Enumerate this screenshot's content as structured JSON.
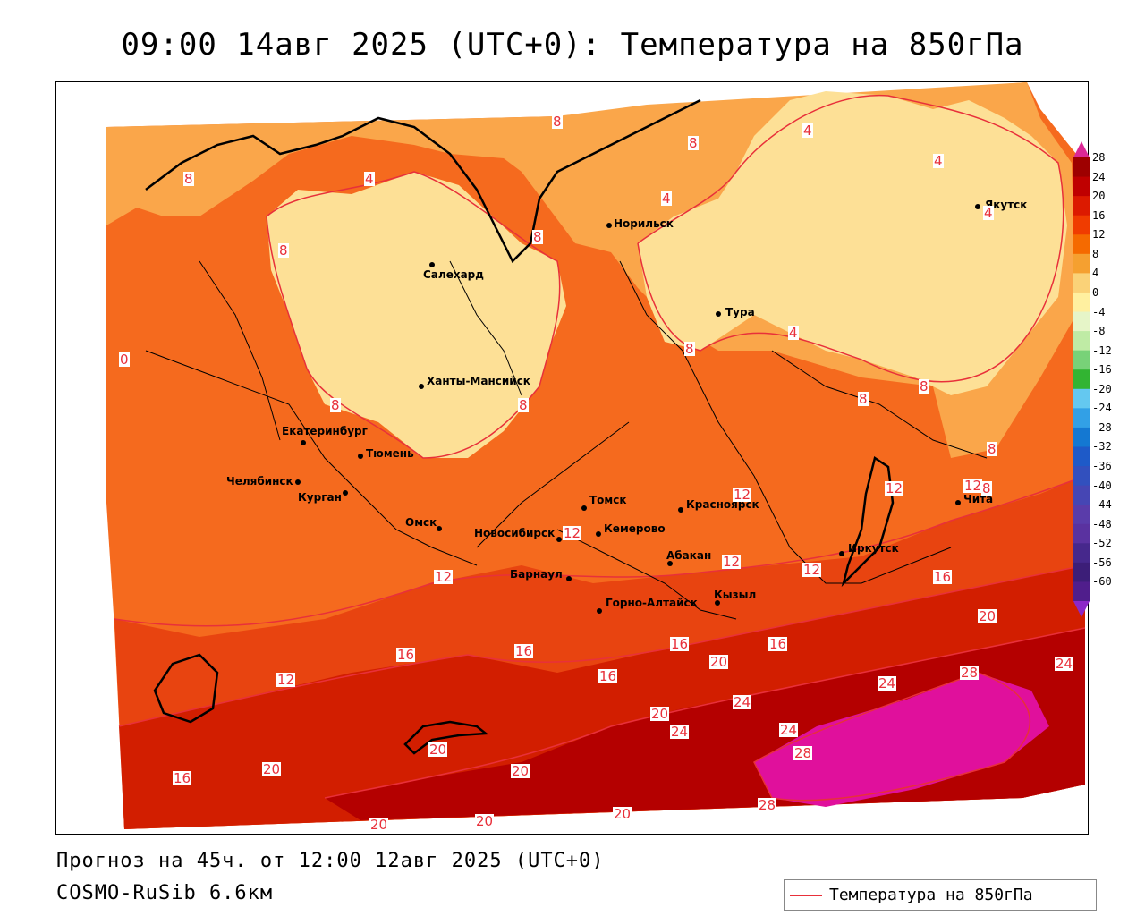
{
  "header": {
    "title": "09:00 14авг 2025 (UTC+0): Температура на 850гПа"
  },
  "footer": {
    "forecast": "Прогноз на 45ч. от 12:00 12авг 2025 (UTC+0)",
    "model": "COSMO-RuSib 6.6км"
  },
  "legend": {
    "label": "Температура на 850гПа",
    "line_color": "#e8303a"
  },
  "colorbar": {
    "ticks": [
      "28",
      "24",
      "20",
      "16",
      "12",
      "8",
      "4",
      "0",
      "-4",
      "-8",
      "-12",
      "-16",
      "-20",
      "-24",
      "-28",
      "-32",
      "-36",
      "-40",
      "-44",
      "-48",
      "-52",
      "-56",
      "-60"
    ],
    "colors": [
      "#9e0000",
      "#bf0000",
      "#dc1a00",
      "#f03c00",
      "#f56a00",
      "#f5a030",
      "#fad278",
      "#fff0a0",
      "#e6f5c8",
      "#bfeba5",
      "#78d278",
      "#32b432",
      "#64c8f0",
      "#32a0e6",
      "#1478d2",
      "#1e5ac8",
      "#3250be",
      "#4646b4",
      "#5a3caa",
      "#5a32a0",
      "#46288c",
      "#3c1e78",
      "#501e8c"
    ],
    "top_arrow_color": "#dc2896",
    "bottom_arrow_color": "#8c28c8"
  },
  "cities": [
    {
      "name": "Норильск"
    },
    {
      "name": "Салехард"
    },
    {
      "name": "Тура"
    },
    {
      "name": "Якутск"
    },
    {
      "name": "Ханты-Мансийск"
    },
    {
      "name": "Екатеринбург"
    },
    {
      "name": "Тюмень"
    },
    {
      "name": "Челябинск"
    },
    {
      "name": "Курган"
    },
    {
      "name": "Омск"
    },
    {
      "name": "Новосибирск"
    },
    {
      "name": "Томск"
    },
    {
      "name": "Кемерово"
    },
    {
      "name": "Красноярск"
    },
    {
      "name": "Абакан"
    },
    {
      "name": "Барнаул"
    },
    {
      "name": "Горно-Алтайск"
    },
    {
      "name": "Кызыл"
    },
    {
      "name": "Иркутск"
    },
    {
      "name": "Чита"
    }
  ],
  "isotherm_labels": [
    "8",
    "4",
    "8",
    "8",
    "8",
    "4",
    "4",
    "0",
    "8",
    "4",
    "8",
    "4",
    "8",
    "4",
    "8",
    "8",
    "8",
    "8",
    "8",
    "12",
    "12",
    "12",
    "12",
    "12",
    "12",
    "12",
    "16",
    "16",
    "16",
    "16",
    "20",
    "16",
    "12",
    "16",
    "20",
    "20",
    "24",
    "24",
    "28",
    "20",
    "24",
    "24",
    "28",
    "24",
    "20",
    "20",
    "20",
    "20",
    "16",
    "20",
    "28"
  ],
  "fill_colors": {
    "t28plus": "#e0109c",
    "t24": "#b40000",
    "t20": "#d21e00",
    "t16": "#e84410",
    "t12": "#f56a1e",
    "t8": "#faa64a",
    "t4": "#fde096"
  }
}
